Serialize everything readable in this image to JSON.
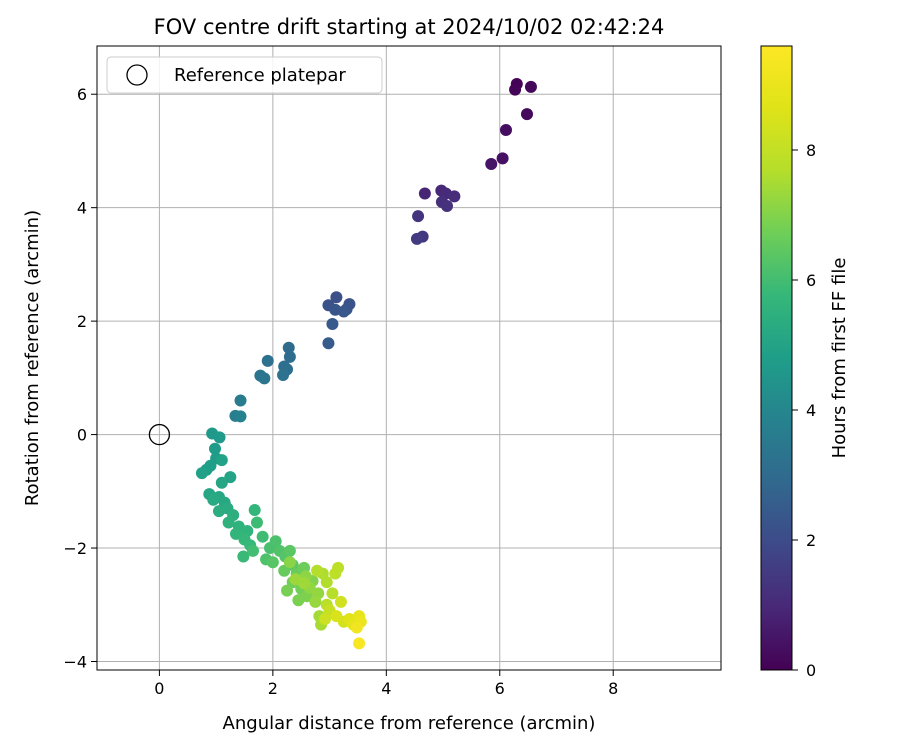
{
  "chart_data": {
    "type": "scatter",
    "title": "FOV centre drift starting at 2024/10/02 02:42:24",
    "xlabel": "Angular distance from reference (arcmin)",
    "ylabel": "Rotation from reference (arcmin)",
    "xlim": [
      -1.1,
      9.9
    ],
    "ylim": [
      -4.15,
      6.85
    ],
    "x_ticks": [
      0,
      2,
      4,
      6,
      8
    ],
    "y_ticks": [
      -4,
      -2,
      0,
      2,
      4,
      6
    ],
    "x_tick_labels": [
      "0",
      "2",
      "4",
      "6",
      "8"
    ],
    "y_tick_labels": [
      "−4",
      "−2",
      "0",
      "2",
      "4",
      "6"
    ],
    "grid": true,
    "legend": {
      "placement": "top-left",
      "entries": [
        "Reference platepar"
      ]
    },
    "reference_point": {
      "x": 0,
      "y": 0
    },
    "colorbar": {
      "label": "Hours from first FF file",
      "colormap": "viridis",
      "min": 0,
      "max": 9.6,
      "ticks": [
        0,
        2,
        4,
        6,
        8
      ],
      "tick_labels": [
        "0",
        "2",
        "4",
        "6",
        "8"
      ]
    },
    "points": [
      [
        6.3,
        6.18,
        0.05
      ],
      [
        6.27,
        6.08,
        0.1
      ],
      [
        6.55,
        6.13,
        0.15
      ],
      [
        6.48,
        5.65,
        0.2
      ],
      [
        6.11,
        5.37,
        0.3
      ],
      [
        6.05,
        4.87,
        0.4
      ],
      [
        5.85,
        4.77,
        0.5
      ],
      [
        4.68,
        4.25,
        0.9
      ],
      [
        4.97,
        4.3,
        1.0
      ],
      [
        5.05,
        4.25,
        1.05
      ],
      [
        5.2,
        4.2,
        1.1
      ],
      [
        4.98,
        4.1,
        1.15
      ],
      [
        5.07,
        4.03,
        1.2
      ],
      [
        4.56,
        3.85,
        1.3
      ],
      [
        4.64,
        3.49,
        1.4
      ],
      [
        4.54,
        3.45,
        1.5
      ],
      [
        3.12,
        2.42,
        2.1
      ],
      [
        2.98,
        2.28,
        2.15
      ],
      [
        3.35,
        2.3,
        2.2
      ],
      [
        3.3,
        2.21,
        2.25
      ],
      [
        3.1,
        2.2,
        2.3
      ],
      [
        3.25,
        2.17,
        2.35
      ],
      [
        3.05,
        1.95,
        2.4
      ],
      [
        2.98,
        1.61,
        2.5
      ],
      [
        2.28,
        1.53,
        3.0
      ],
      [
        2.3,
        1.37,
        3.05
      ],
      [
        2.2,
        1.2,
        3.1
      ],
      [
        2.25,
        1.15,
        3.15
      ],
      [
        1.91,
        1.3,
        3.2
      ],
      [
        2.18,
        1.05,
        3.25
      ],
      [
        1.78,
        1.04,
        3.3
      ],
      [
        1.85,
        0.99,
        3.4
      ],
      [
        1.43,
        0.6,
        3.6
      ],
      [
        1.34,
        0.33,
        3.7
      ],
      [
        1.43,
        0.32,
        3.8
      ],
      [
        0.93,
        0.02,
        4.6
      ],
      [
        1.06,
        -0.05,
        4.65
      ],
      [
        0.98,
        -0.25,
        4.7
      ],
      [
        1.0,
        -0.42,
        4.75
      ],
      [
        0.9,
        -0.55,
        4.8
      ],
      [
        0.83,
        -0.62,
        4.85
      ],
      [
        0.75,
        -0.68,
        4.9
      ],
      [
        1.1,
        -0.45,
        4.95
      ],
      [
        1.25,
        -0.75,
        5.0
      ],
      [
        1.1,
        -0.85,
        5.05
      ],
      [
        0.88,
        -1.05,
        5.1
      ],
      [
        1.05,
        -1.1,
        5.15
      ],
      [
        1.15,
        -1.2,
        5.2
      ],
      [
        0.95,
        -1.15,
        5.25
      ],
      [
        1.2,
        -1.3,
        5.3
      ],
      [
        1.05,
        -1.35,
        5.35
      ],
      [
        1.3,
        -1.42,
        5.4
      ],
      [
        1.22,
        -1.55,
        5.5
      ],
      [
        1.4,
        -1.62,
        5.55
      ],
      [
        1.55,
        -1.7,
        5.6
      ],
      [
        1.35,
        -1.75,
        5.65
      ],
      [
        1.68,
        -1.33,
        5.7
      ],
      [
        1.5,
        -1.85,
        5.75
      ],
      [
        1.6,
        -1.95,
        5.8
      ],
      [
        1.48,
        -2.15,
        5.85
      ],
      [
        1.72,
        -1.55,
        5.9
      ],
      [
        1.82,
        -1.8,
        5.95
      ],
      [
        1.65,
        -2.05,
        6.0
      ],
      [
        1.95,
        -2.0,
        6.1
      ],
      [
        2.05,
        -1.88,
        6.15
      ],
      [
        1.88,
        -2.2,
        6.2
      ],
      [
        2.12,
        -2.05,
        6.25
      ],
      [
        2.22,
        -2.15,
        6.3
      ],
      [
        2.0,
        -2.25,
        6.35
      ],
      [
        2.3,
        -2.05,
        6.4
      ],
      [
        2.35,
        -2.3,
        6.45
      ],
      [
        2.2,
        -2.4,
        6.6
      ],
      [
        2.42,
        -2.45,
        6.65
      ],
      [
        2.55,
        -2.35,
        6.7
      ],
      [
        2.35,
        -2.6,
        6.75
      ],
      [
        2.5,
        -2.72,
        6.8
      ],
      [
        2.25,
        -2.75,
        6.85
      ],
      [
        2.45,
        -2.92,
        6.9
      ],
      [
        2.6,
        -2.85,
        6.95
      ],
      [
        2.7,
        -2.58,
        7.0
      ],
      [
        2.3,
        -2.25,
        7.1
      ],
      [
        2.58,
        -2.5,
        7.15
      ],
      [
        2.65,
        -2.7,
        7.2
      ],
      [
        2.8,
        -2.8,
        7.25
      ],
      [
        2.75,
        -2.95,
        7.3
      ],
      [
        2.4,
        -2.55,
        7.35
      ],
      [
        2.55,
        -2.62,
        7.4
      ],
      [
        2.82,
        -3.2,
        7.45
      ],
      [
        2.85,
        -3.35,
        7.5
      ],
      [
        2.88,
        -2.45,
        7.6
      ],
      [
        2.95,
        -2.6,
        7.65
      ],
      [
        2.78,
        -2.4,
        7.7
      ],
      [
        3.05,
        -2.8,
        7.75
      ],
      [
        2.95,
        -3.0,
        7.8
      ],
      [
        3.1,
        -2.45,
        7.85
      ],
      [
        3.15,
        -2.35,
        7.9
      ],
      [
        3.0,
        -3.1,
        8.1
      ],
      [
        2.92,
        -3.25,
        8.2
      ],
      [
        3.2,
        -2.95,
        8.3
      ],
      [
        3.25,
        -3.3,
        8.4
      ],
      [
        3.12,
        -3.2,
        8.5
      ],
      [
        3.35,
        -3.25,
        8.7
      ],
      [
        3.42,
        -3.35,
        8.8
      ],
      [
        3.52,
        -3.2,
        8.9
      ],
      [
        3.55,
        -3.3,
        9.0
      ],
      [
        3.48,
        -3.4,
        9.2
      ],
      [
        3.52,
        -3.68,
        9.4
      ]
    ]
  },
  "colors": {
    "marker_edge_reference": "#000000",
    "grid": "#b0b0b0",
    "axes": "#000000"
  }
}
